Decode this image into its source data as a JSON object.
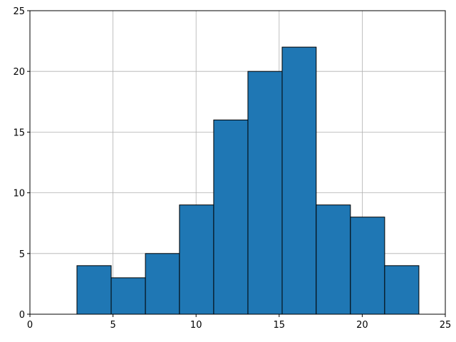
{
  "chart_data": {
    "type": "histogram",
    "bins": [
      2.83,
      4.89,
      6.95,
      9.0,
      11.06,
      13.12,
      15.18,
      17.23,
      19.29,
      21.35,
      23.41
    ],
    "values": [
      4,
      3,
      5,
      9,
      16,
      20,
      22,
      9,
      8,
      4
    ],
    "color": "#1f77b4",
    "edgecolor": "#000000",
    "xlim": [
      0,
      25
    ],
    "xticks": [
      0,
      5,
      10,
      15,
      20,
      25
    ],
    "ylim": [
      0,
      25
    ],
    "yticks": [
      0,
      5,
      10,
      15,
      20,
      25
    ],
    "grid": true
  }
}
